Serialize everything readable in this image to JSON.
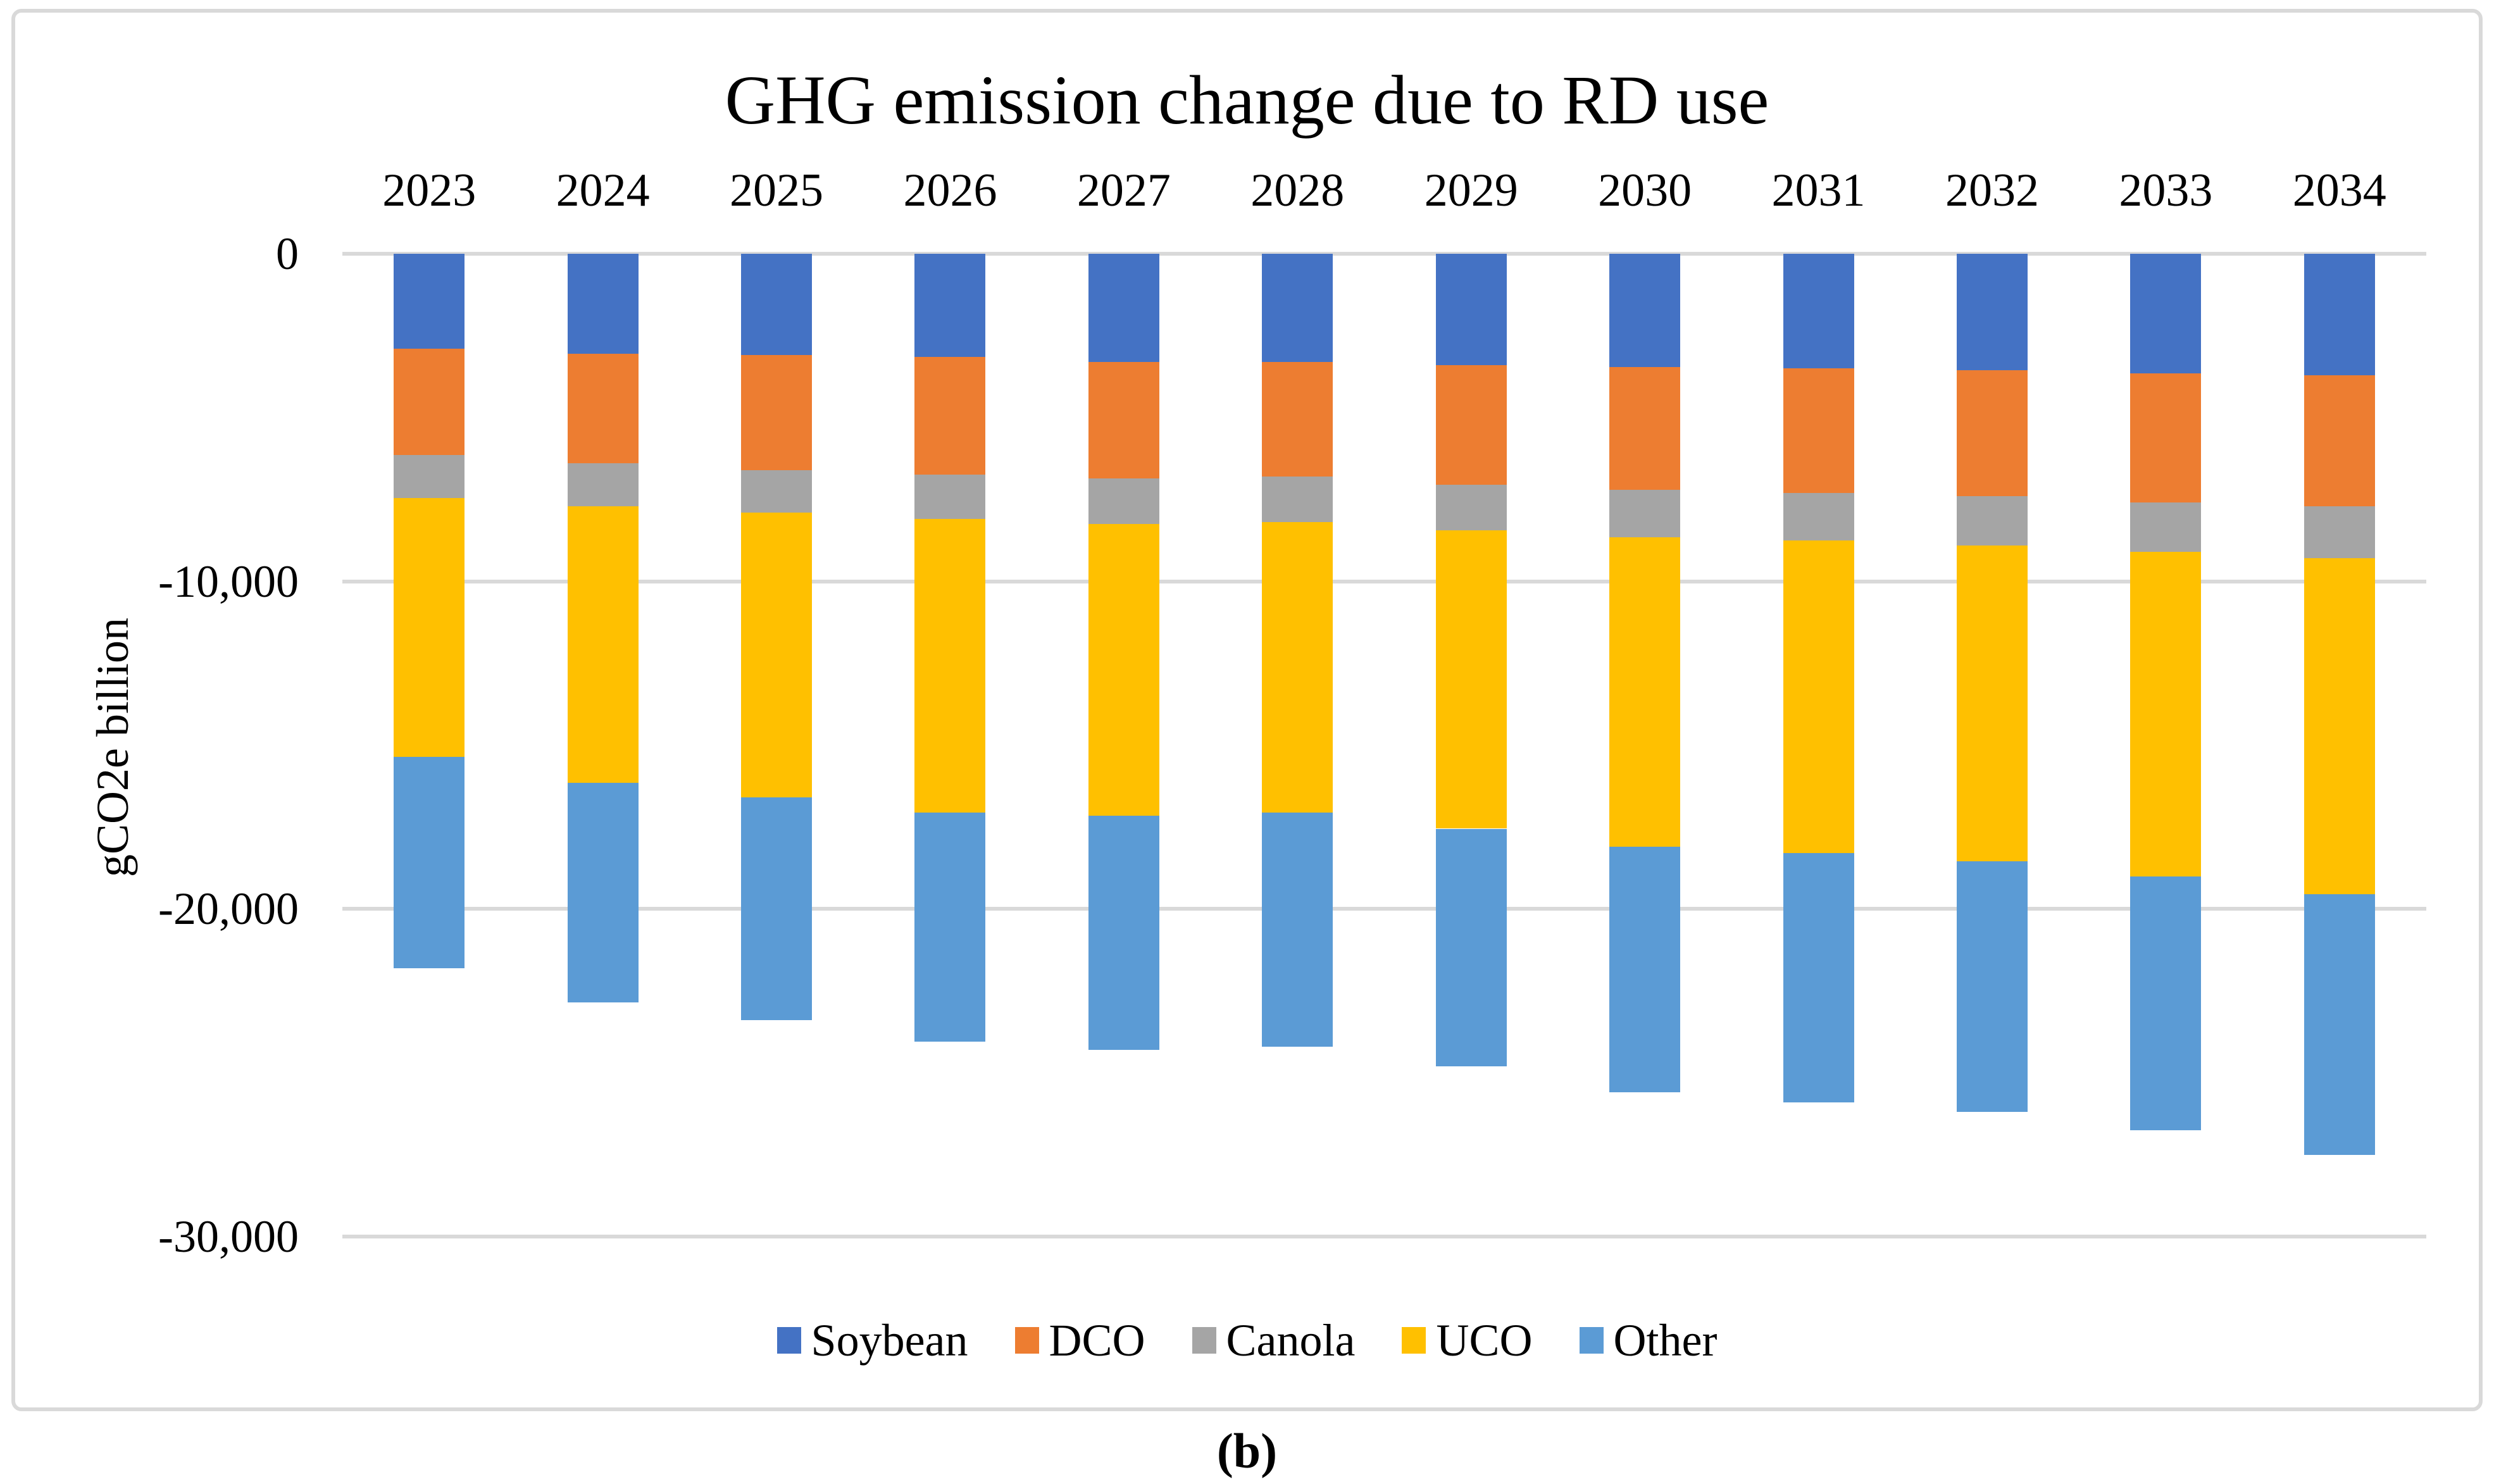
{
  "caption": "(b)",
  "chart_data": {
    "type": "bar",
    "stacked": true,
    "orientation": "vertical",
    "title": "GHG emission change due to RD use",
    "xlabel": "",
    "ylabel": "gCO2e billion",
    "categories": [
      "2023",
      "2024",
      "2025",
      "2026",
      "2027",
      "2028",
      "2029",
      "2030",
      "2031",
      "2032",
      "2033",
      "2034"
    ],
    "series": [
      {
        "name": "Soybean",
        "color": "#4472C4",
        "values": [
          -2900,
          -3050,
          -3100,
          -3150,
          -3300,
          -3300,
          -3400,
          -3450,
          -3500,
          -3550,
          -3650,
          -3700
        ]
      },
      {
        "name": "DCO",
        "color": "#ED7D31",
        "values": [
          -3250,
          -3350,
          -3500,
          -3600,
          -3550,
          -3500,
          -3650,
          -3750,
          -3800,
          -3850,
          -3950,
          -4000
        ]
      },
      {
        "name": "Canola",
        "color": "#A5A5A5",
        "values": [
          -1300,
          -1300,
          -1300,
          -1350,
          -1400,
          -1400,
          -1400,
          -1450,
          -1450,
          -1500,
          -1500,
          -1600
        ]
      },
      {
        "name": "UCO",
        "color": "#FFC000",
        "values": [
          -7900,
          -8450,
          -8700,
          -8950,
          -8900,
          -8850,
          -9100,
          -9450,
          -9550,
          -9650,
          -9900,
          -10250
        ]
      },
      {
        "name": "Other",
        "color": "#5B9BD5",
        "values": [
          -6450,
          -6700,
          -6800,
          -7000,
          -7150,
          -7150,
          -7250,
          -7500,
          -7600,
          -7650,
          -7750,
          -7950
        ]
      }
    ],
    "totals": [
      -21800,
      -22850,
      -23400,
      -24050,
      -24300,
      -24200,
      -24800,
      -25600,
      -25900,
      -26200,
      -26750,
      -27500
    ],
    "ylim": [
      -30000,
      0
    ],
    "ytick_values": [
      0,
      -10000,
      -20000,
      -30000
    ],
    "yticks": [
      "0",
      "-10,000",
      "-20,000",
      "-30,000"
    ],
    "grid": true,
    "gridline_color": "#D9D9D9",
    "border_color": "#D9D9D9",
    "legend_position": "bottom"
  }
}
